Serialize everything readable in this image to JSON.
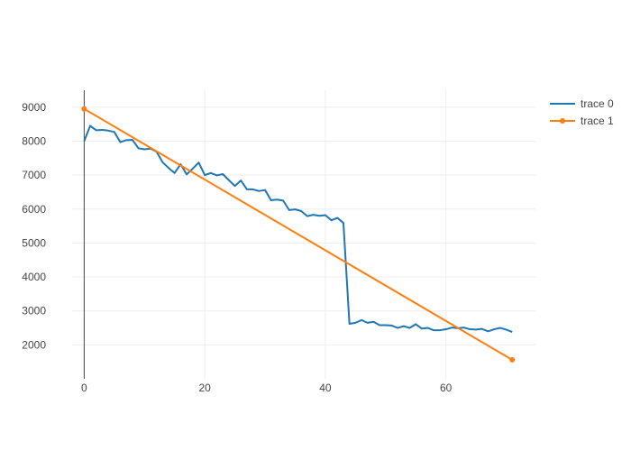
{
  "chart_data": {
    "type": "line",
    "xlim": [
      -2,
      75
    ],
    "ylim": [
      1000,
      9500
    ],
    "x_ticks": [
      0,
      20,
      40,
      60
    ],
    "y_ticks": [
      2000,
      3000,
      4000,
      5000,
      6000,
      7000,
      8000,
      9000
    ],
    "x_tick_labels": [
      "0",
      "20",
      "40",
      "60"
    ],
    "y_tick_labels": [
      "2000",
      "3000",
      "4000",
      "5000",
      "6000",
      "7000",
      "8000",
      "9000"
    ],
    "grid": true,
    "legend_position": "top-right",
    "series": [
      {
        "name": "trace 0",
        "color": "#1f77b4",
        "mode": "lines",
        "x": [
          0,
          1,
          2,
          3,
          4,
          5,
          6,
          7,
          8,
          9,
          10,
          11,
          12,
          13,
          14,
          15,
          16,
          17,
          18,
          19,
          20,
          21,
          22,
          23,
          24,
          25,
          26,
          27,
          28,
          29,
          30,
          31,
          32,
          33,
          34,
          35,
          36,
          37,
          38,
          39,
          40,
          41,
          42,
          43,
          44,
          45,
          46,
          47,
          48,
          49,
          50,
          51,
          52,
          53,
          54,
          55,
          56,
          57,
          58,
          59,
          60,
          61,
          62,
          63,
          64,
          65,
          66,
          67,
          68,
          69,
          70,
          71
        ],
        "y": [
          8000,
          8450,
          8320,
          8330,
          8310,
          8270,
          7970,
          8030,
          8040,
          7790,
          7760,
          7780,
          7690,
          7380,
          7210,
          7060,
          7320,
          7020,
          7190,
          7370,
          7000,
          7060,
          6990,
          7030,
          6850,
          6680,
          6840,
          6580,
          6580,
          6530,
          6560,
          6260,
          6280,
          6250,
          5970,
          5990,
          5940,
          5790,
          5830,
          5800,
          5820,
          5670,
          5740,
          5590,
          2620,
          2650,
          2730,
          2650,
          2680,
          2580,
          2580,
          2570,
          2500,
          2550,
          2500,
          2610,
          2480,
          2500,
          2430,
          2430,
          2460,
          2510,
          2490,
          2510,
          2460,
          2450,
          2470,
          2400,
          2460,
          2500,
          2450,
          2380
        ]
      },
      {
        "name": "trace 1",
        "color": "#ff7f0e",
        "mode": "lines+markers",
        "x": [
          0,
          71
        ],
        "y": [
          8950,
          1560
        ]
      }
    ]
  }
}
